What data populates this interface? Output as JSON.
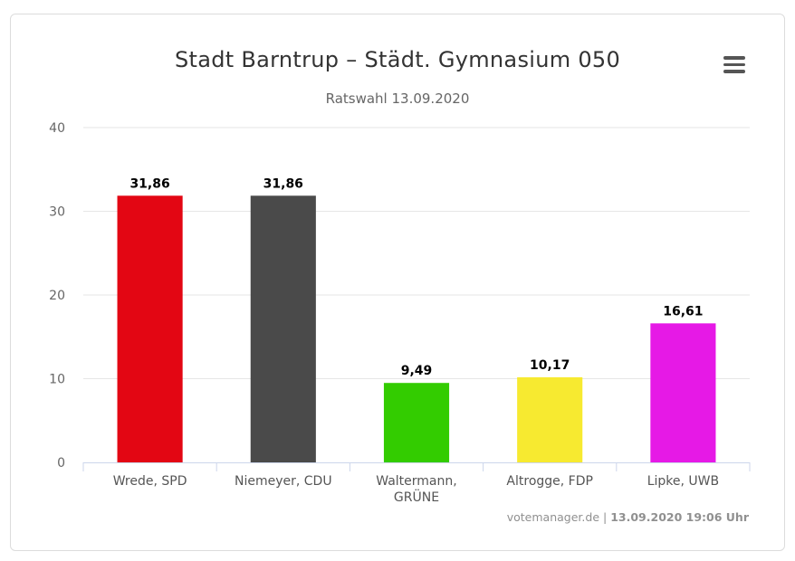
{
  "header": {
    "title": "Stadt Barntrup – Städt. Gymnasium 050",
    "subtitle": "Ratswahl 13.09.2020"
  },
  "menu": {
    "icon": "hamburger-menu-icon"
  },
  "credits": {
    "source": "votemanager.de",
    "separator": "|",
    "timestamp": "13.09.2020 19:06 Uhr"
  },
  "chart_data": {
    "type": "bar",
    "title": "Stadt Barntrup – Städt. Gymnasium 050",
    "subtitle": "Ratswahl 13.09.2020",
    "categories": [
      [
        "Wrede, SPD"
      ],
      [
        "Niemeyer, CDU"
      ],
      [
        "Waltermann,",
        "GRÜNE"
      ],
      [
        "Altrogge, FDP"
      ],
      [
        "Lipke, UWB"
      ]
    ],
    "values": [
      31.86,
      31.86,
      9.49,
      10.17,
      16.61
    ],
    "value_labels": [
      "31,86",
      "31,86",
      "9,49",
      "10,17",
      "16,61"
    ],
    "colors": [
      "#e30613",
      "#4a4a4a",
      "#33cc00",
      "#f7ea30",
      "#e619e6"
    ],
    "ylim": [
      0,
      40
    ],
    "yticks": [
      0,
      10,
      20,
      30,
      40
    ],
    "grid": true,
    "legend": "none"
  }
}
